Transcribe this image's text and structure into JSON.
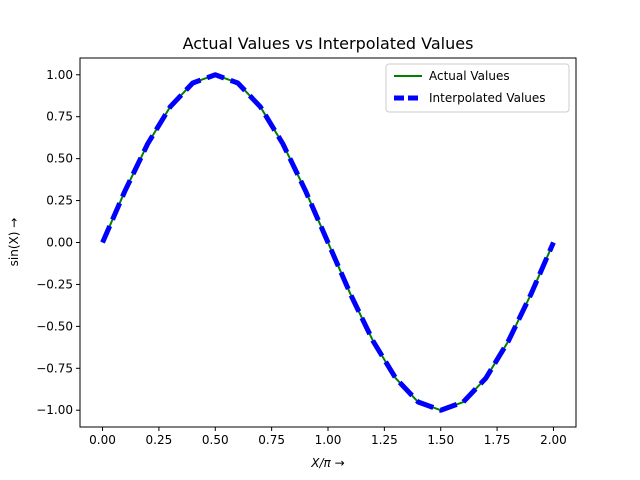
{
  "chart_data": {
    "type": "line",
    "title": "Actual Values vs Interpolated Values",
    "xlabel_prefix": "X/π",
    "xlabel_arrow": "→",
    "ylabel_prefix": "sin(X)",
    "ylabel_arrow": "→",
    "xlim": [
      -0.1,
      2.1
    ],
    "ylim": [
      -1.1,
      1.1
    ],
    "xticks": [
      0.0,
      0.25,
      0.5,
      0.75,
      1.0,
      1.25,
      1.5,
      1.75,
      2.0
    ],
    "xtick_labels": [
      "0.00",
      "0.25",
      "0.50",
      "0.75",
      "1.00",
      "1.25",
      "1.50",
      "1.75",
      "2.00"
    ],
    "yticks": [
      -1.0,
      -0.75,
      -0.5,
      -0.25,
      0.0,
      0.25,
      0.5,
      0.75,
      1.0
    ],
    "ytick_labels": [
      "−1.00",
      "−0.75",
      "−0.50",
      "−0.25",
      "0.00",
      "0.25",
      "0.50",
      "0.75",
      "1.00"
    ],
    "grid": false,
    "legend_position": "top-right",
    "x": [
      0.0,
      0.1,
      0.2,
      0.3,
      0.4,
      0.5,
      0.6,
      0.7,
      0.8,
      0.9,
      1.0,
      1.1,
      1.2,
      1.3,
      1.4,
      1.5,
      1.6,
      1.7,
      1.8,
      1.9,
      2.0
    ],
    "series": [
      {
        "name": "Actual Values",
        "color": "#008000",
        "style": "solid",
        "values": [
          0.0,
          0.309,
          0.588,
          0.809,
          0.951,
          1.0,
          0.951,
          0.809,
          0.588,
          0.309,
          0.0,
          -0.309,
          -0.588,
          -0.809,
          -0.951,
          -1.0,
          -0.951,
          -0.809,
          -0.588,
          -0.309,
          0.0
        ]
      },
      {
        "name": "Interpolated Values",
        "color": "#0000ff",
        "style": "dashed",
        "values": [
          0.0,
          0.309,
          0.588,
          0.809,
          0.951,
          1.0,
          0.951,
          0.809,
          0.588,
          0.309,
          0.0,
          -0.309,
          -0.588,
          -0.809,
          -0.951,
          -1.0,
          -0.951,
          -0.809,
          -0.588,
          -0.309,
          0.0
        ]
      }
    ]
  }
}
